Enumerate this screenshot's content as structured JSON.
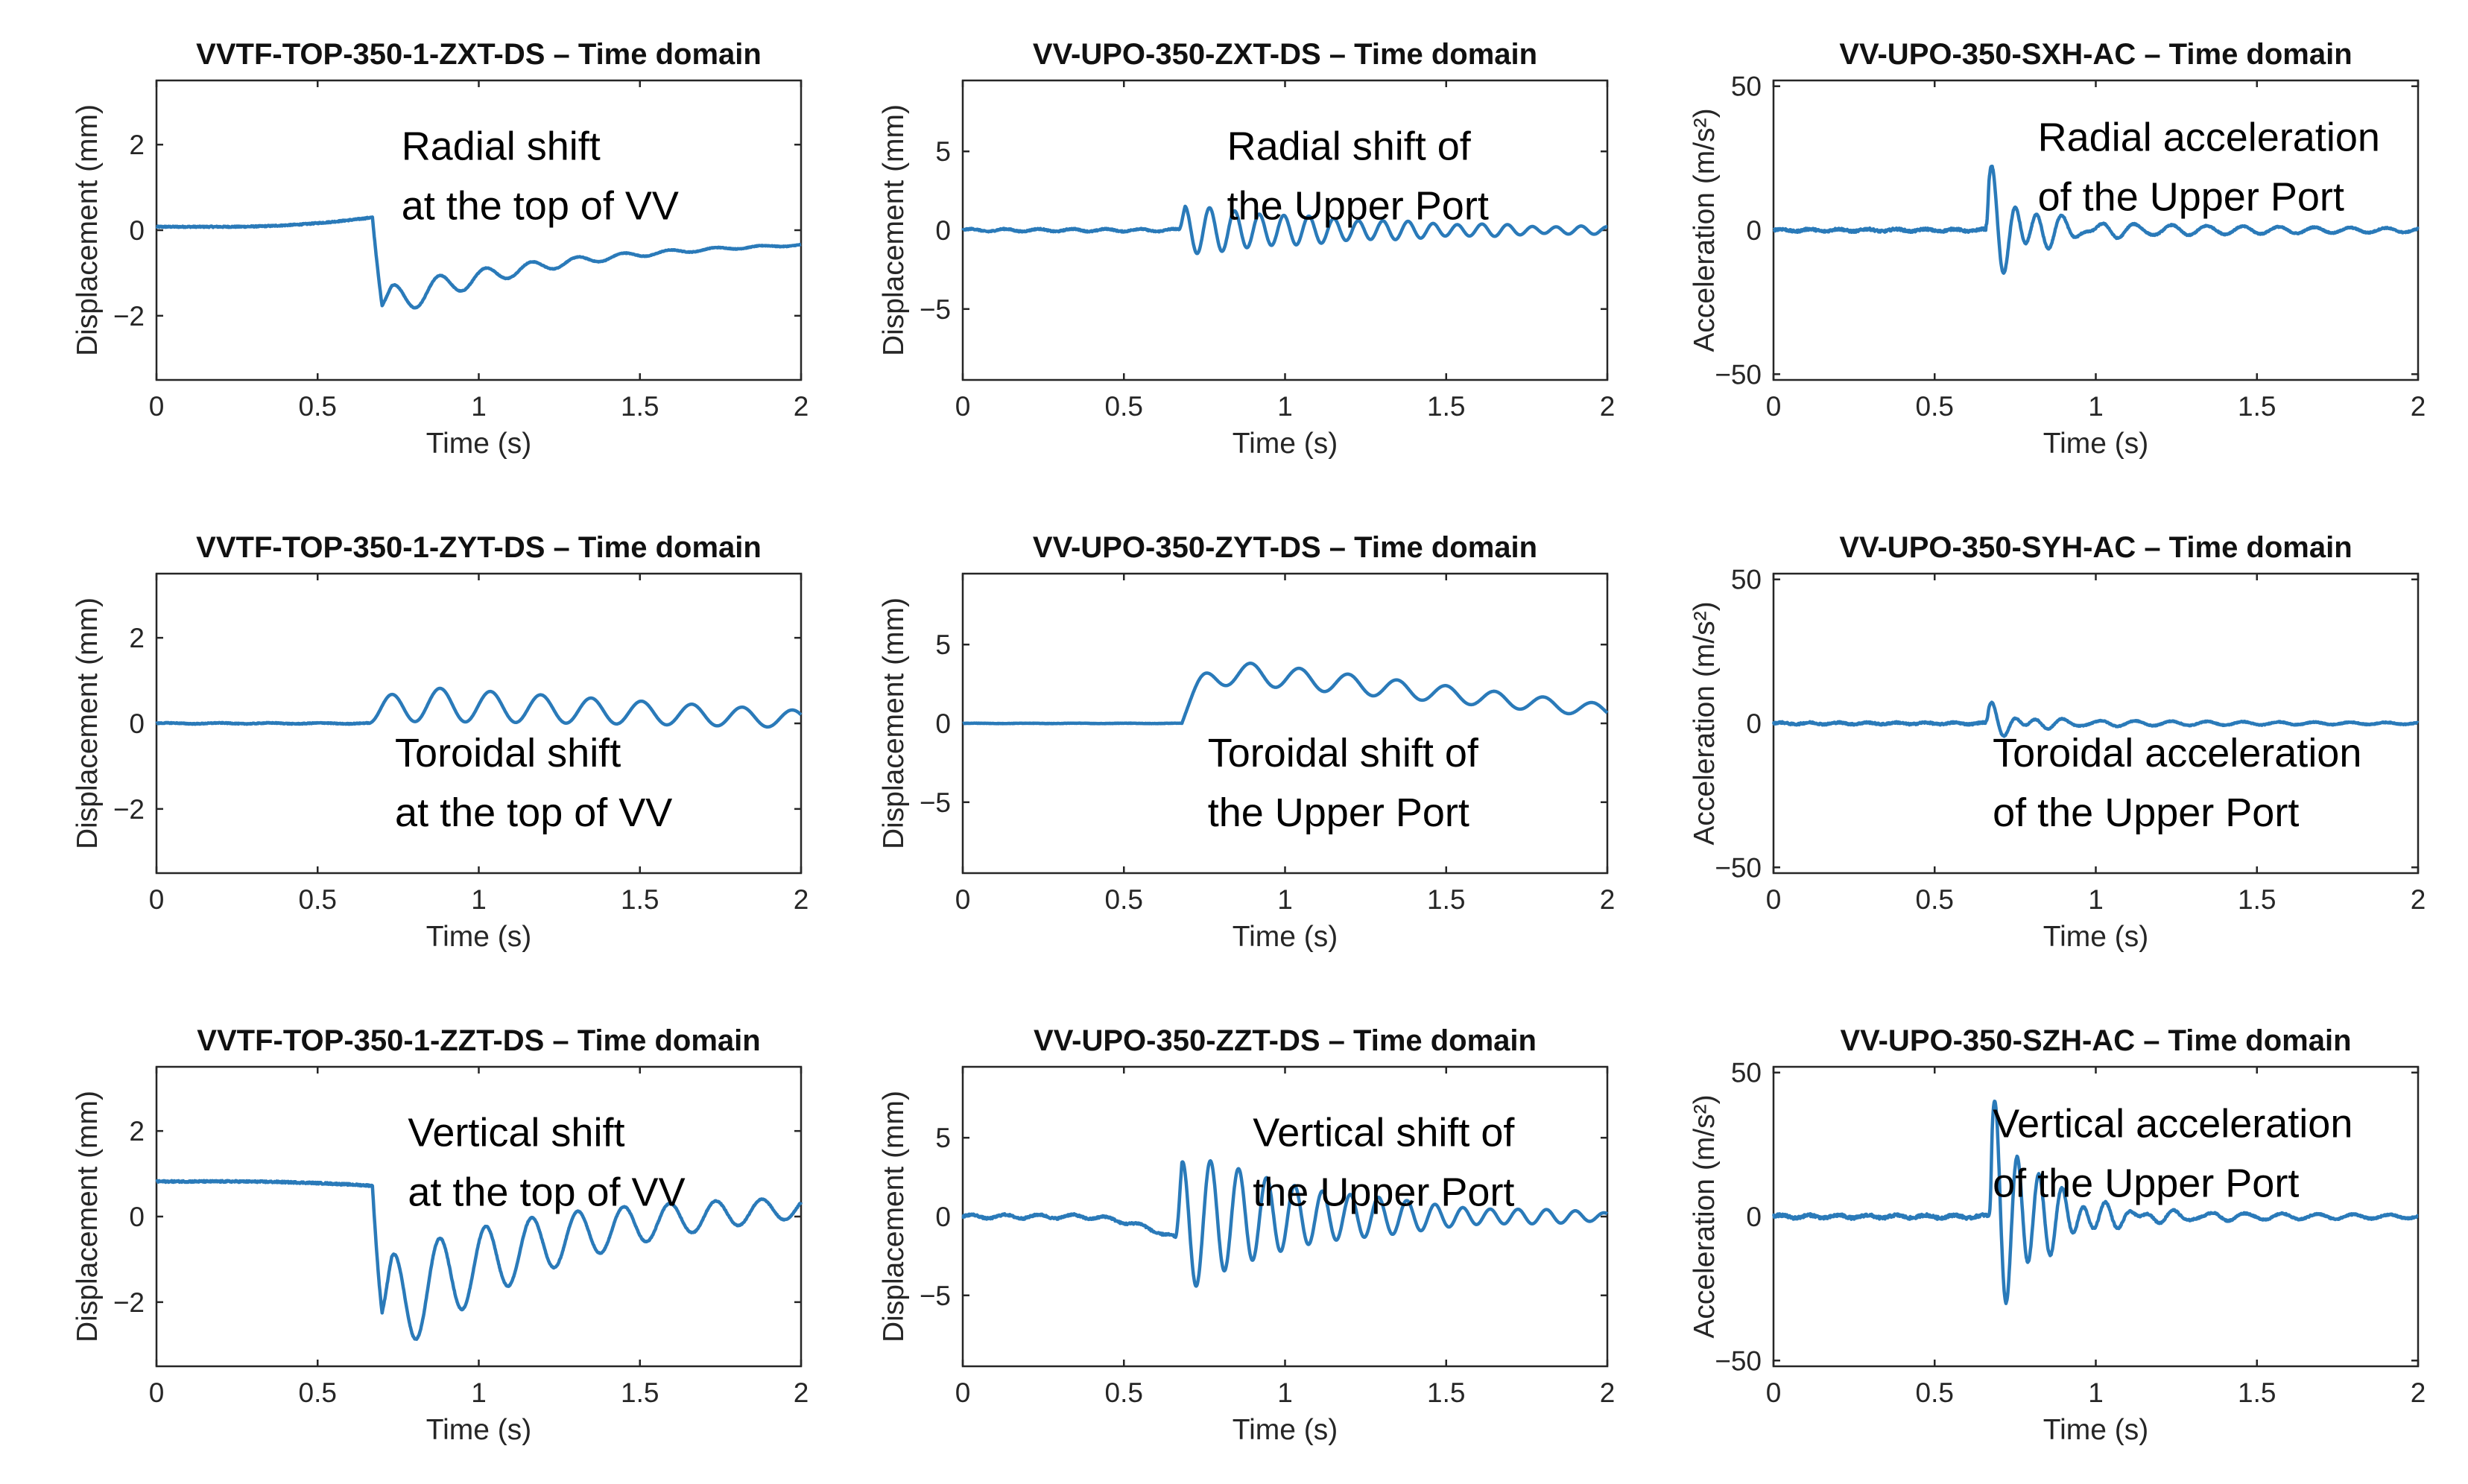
{
  "figure": {
    "description_note": ""
  },
  "chart_data": [
    {
      "type": "line",
      "title": "VVTF-TOP-350-1-ZXT-DS – Time domain",
      "xlabel": "Time (s)",
      "ylabel": "Displacement (mm)",
      "xlim": [
        0,
        2
      ],
      "ylim": [
        -3.5,
        3.5
      ],
      "xticks": [
        0,
        0.5,
        1,
        1.5,
        2
      ],
      "xtick_labels": [
        "0",
        "0.5",
        "1",
        "1.5",
        "2"
      ],
      "yticks": [
        -2,
        0,
        2
      ],
      "ytick_labels": [
        "−2",
        "0",
        "2"
      ],
      "annotation": [
        "Radial shift",
        "at the top of VV"
      ],
      "signal": {
        "kind": "step",
        "t0": 0.67,
        "pre_level": 0.08,
        "pre_end": 0.3,
        "step_to": -1.85,
        "recover_to": -0.2,
        "recover_tau": 0.55,
        "osc_amp": 0.45,
        "osc_freq": 7.0,
        "osc_decay": 2.5,
        "noise": 0.015
      },
      "color": "#2a7ab9"
    },
    {
      "type": "line",
      "title": "VV-UPO-350-ZXT-DS – Time domain",
      "xlabel": "Time (s)",
      "ylabel": "Displacement (mm)",
      "xlim": [
        0,
        2
      ],
      "ylim": [
        -9.5,
        9.5
      ],
      "xticks": [
        0,
        0.5,
        1,
        1.5,
        2
      ],
      "xtick_labels": [
        "0",
        "0.5",
        "1",
        "1.5",
        "2"
      ],
      "yticks": [
        -5,
        0,
        5
      ],
      "ytick_labels": [
        "−5",
        "0",
        "5"
      ],
      "annotation": [
        "Radial shift of",
        "the Upper Port"
      ],
      "signal": {
        "kind": "burst",
        "t0": 0.67,
        "amp": 1.6,
        "freq": 13.0,
        "decay": 1.6,
        "offset": 0.0,
        "pre_noise": 0.08,
        "pre_drift": 0.0
      },
      "color": "#2a7ab9"
    },
    {
      "type": "line",
      "title": "VV-UPO-350-SXH-AC – Time domain",
      "xlabel": "Time (s)",
      "ylabel": "Acceleration (m/s²)",
      "xlim": [
        0,
        2
      ],
      "ylim": [
        -52,
        52
      ],
      "xticks": [
        0,
        0.5,
        1,
        1.5,
        2
      ],
      "xtick_labels": [
        "0",
        "0.5",
        "1",
        "1.5",
        "2"
      ],
      "yticks": [
        -50,
        0,
        50
      ],
      "ytick_labels": [
        "−50",
        "0",
        "50"
      ],
      "annotation": [
        "Radial acceleration",
        "of the Upper Port"
      ],
      "signal": {
        "kind": "accel",
        "t0": 0.66,
        "amp": 22,
        "freq": 14.0,
        "decay": 4.0,
        "tail": 3.5,
        "pre_noise": 0.4
      },
      "color": "#2a7ab9"
    },
    {
      "type": "line",
      "title": "VVTF-TOP-350-1-ZYT-DS – Time domain",
      "xlabel": "Time (s)",
      "ylabel": "Displacement (mm)",
      "xlim": [
        0,
        2
      ],
      "ylim": [
        -3.5,
        3.5
      ],
      "xticks": [
        0,
        0.5,
        1,
        1.5,
        2
      ],
      "xtick_labels": [
        "0",
        "0.5",
        "1",
        "1.5",
        "2"
      ],
      "yticks": [
        -2,
        0,
        2
      ],
      "ytick_labels": [
        "−2",
        "0",
        "2"
      ],
      "annotation": [
        "Toroidal shift",
        "at the top of VV"
      ],
      "signal": {
        "kind": "rise",
        "t0": 0.66,
        "base": 0.0,
        "level": 0.5,
        "level_end": 0.1,
        "osc_amp": 0.45,
        "osc_freq": 6.4,
        "osc_decay": 0.6
      },
      "color": "#2a7ab9"
    },
    {
      "type": "line",
      "title": "VV-UPO-350-ZYT-DS – Time domain",
      "xlabel": "Time (s)",
      "ylabel": "Displacement (mm)",
      "xlim": [
        0,
        2
      ],
      "ylim": [
        -9.5,
        9.5
      ],
      "xticks": [
        0,
        0.5,
        1,
        1.5,
        2
      ],
      "xtick_labels": [
        "0",
        "0.5",
        "1",
        "1.5",
        "2"
      ],
      "yticks": [
        -5,
        0,
        5
      ],
      "ytick_labels": [
        "−5",
        "0",
        "5"
      ],
      "annotation": [
        "Toroidal shift of",
        "the Upper Port"
      ],
      "signal": {
        "kind": "rise",
        "t0": 0.68,
        "base": 0.0,
        "level": 3.6,
        "level_end": 0.8,
        "osc_amp": 0.8,
        "osc_freq": 6.6,
        "osc_decay": 0.5
      },
      "color": "#2a7ab9"
    },
    {
      "type": "line",
      "title": "VV-UPO-350-SYH-AC – Time domain",
      "xlabel": "Time (s)",
      "ylabel": "Acceleration (m/s²)",
      "xlim": [
        0,
        2
      ],
      "ylim": [
        -52,
        52
      ],
      "xticks": [
        0,
        0.5,
        1,
        1.5,
        2
      ],
      "xtick_labels": [
        "0",
        "0.5",
        "1",
        "1.5",
        "2"
      ],
      "yticks": [
        -50,
        0,
        50
      ],
      "ytick_labels": [
        "−50",
        "0",
        "50"
      ],
      "annotation": [
        "Toroidal acceleration",
        "of the Upper Port"
      ],
      "signal": {
        "kind": "accel",
        "t0": 0.66,
        "amp": 7,
        "freq": 14.0,
        "decay": 5.0,
        "tail": 1.5,
        "pre_noise": 0.3
      },
      "color": "#2a7ab9"
    },
    {
      "type": "line",
      "title": "VVTF-TOP-350-1-ZZT-DS – Time domain",
      "xlabel": "Time (s)",
      "ylabel": "Displacement (mm)",
      "xlim": [
        0,
        2
      ],
      "ylim": [
        -3.5,
        3.5
      ],
      "xticks": [
        0,
        0.5,
        1,
        1.5,
        2
      ],
      "xtick_labels": [
        "0",
        "0.5",
        "1",
        "1.5",
        "2"
      ],
      "yticks": [
        -2,
        0,
        2
      ],
      "ytick_labels": [
        "−2",
        "0",
        "2"
      ],
      "annotation": [
        "Vertical shift",
        "at the top of VV"
      ],
      "signal": {
        "kind": "step",
        "t0": 0.67,
        "pre_level": 0.82,
        "pre_end": 0.72,
        "step_to": -2.4,
        "recover_to": 0.45,
        "recover_tau": 0.55,
        "osc_amp": 1.3,
        "osc_freq": 7.0,
        "osc_decay": 1.3,
        "noise": 0.02
      },
      "color": "#2a7ab9"
    },
    {
      "type": "line",
      "title": "VV-UPO-350-ZZT-DS – Time domain",
      "xlabel": "Time (s)",
      "ylabel": "Displacement (mm)",
      "xlim": [
        0,
        2
      ],
      "ylim": [
        -9.5,
        9.5
      ],
      "xticks": [
        0,
        0.5,
        1,
        1.5,
        2
      ],
      "xtick_labels": [
        "0",
        "0.5",
        "1",
        "1.5",
        "2"
      ],
      "yticks": [
        -5,
        0,
        5
      ],
      "ytick_labels": [
        "−5",
        "0",
        "5"
      ],
      "annotation": [
        "Vertical shift of",
        "the Upper Port"
      ],
      "signal": {
        "kind": "burst",
        "t0": 0.66,
        "amp": 4.6,
        "freq": 11.5,
        "decay": 2.2,
        "offset": 0.0,
        "pre_noise": 0.12,
        "pre_drift": -1.4
      },
      "color": "#2a7ab9"
    },
    {
      "type": "line",
      "title": "VV-UPO-350-SZH-AC – Time domain",
      "xlabel": "Time (s)",
      "ylabel": "Acceleration (m/s²)",
      "xlim": [
        0,
        2
      ],
      "ylim": [
        -52,
        52
      ],
      "xticks": [
        0,
        0.5,
        1,
        1.5,
        2
      ],
      "xtick_labels": [
        "0",
        "0.5",
        "1",
        "1.5",
        "2"
      ],
      "yticks": [
        -50,
        0,
        50
      ],
      "ytick_labels": [
        "−50",
        "0",
        "50"
      ],
      "annotation": [
        "Vertical acceleration",
        "of the Upper Port"
      ],
      "signal": {
        "kind": "accel",
        "t0": 0.67,
        "amp": 42,
        "freq": 14.5,
        "decay": 3.2,
        "tail": 3.0,
        "pre_noise": 0.5
      },
      "color": "#2a7ab9"
    }
  ]
}
